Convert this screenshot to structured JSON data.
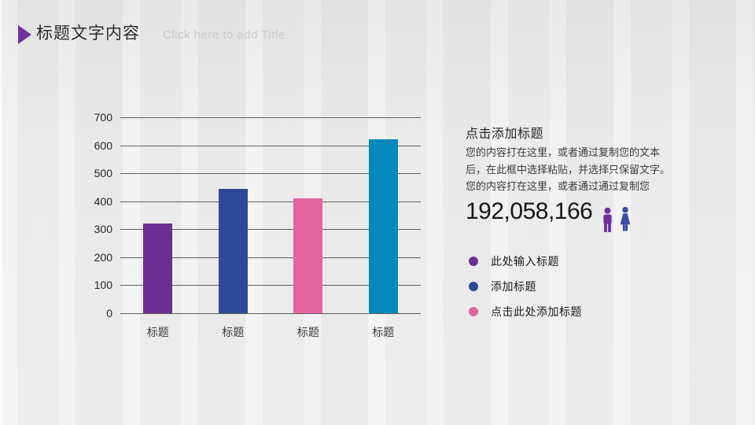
{
  "slide": {
    "title": "标题文字内容",
    "subtitle": "Click here to add Title"
  },
  "chart_data": {
    "type": "bar",
    "categories": [
      "标题",
      "标题",
      "标题",
      "标题"
    ],
    "values": [
      320,
      445,
      410,
      620
    ],
    "bar_colors": [
      "#6b2f93",
      "#2e4899",
      "#e3659f",
      "#0588bc"
    ],
    "title": "",
    "xlabel": "",
    "ylabel": "",
    "ylim": [
      0,
      700
    ],
    "yticks": [
      700,
      600,
      500,
      400,
      300,
      200,
      100,
      0
    ],
    "grid": true,
    "legend": false
  },
  "content": {
    "heading": "点击添加标题",
    "body": "您的内容打在这里，或者通过复制您的文本\n后，在此框中选择粘贴，并选择只保留文字。\n您的内容打在这里，或者通过通过复制您",
    "stat_number": "192,058,166",
    "icons": [
      {
        "name": "male-person-icon",
        "color": "#7030a0"
      },
      {
        "name": "female-person-icon",
        "color": "#3a4aa6"
      }
    ],
    "bullets": [
      {
        "label": "此处输入标题",
        "color": "#6b2f93"
      },
      {
        "label": "添加标题",
        "color": "#2e4899"
      },
      {
        "label": "点击此处添加标题",
        "color": "#e3659f"
      }
    ]
  },
  "colors": {
    "accent": "#7030a0",
    "background": "#edeeed",
    "gridline": "#5f5f5f"
  }
}
